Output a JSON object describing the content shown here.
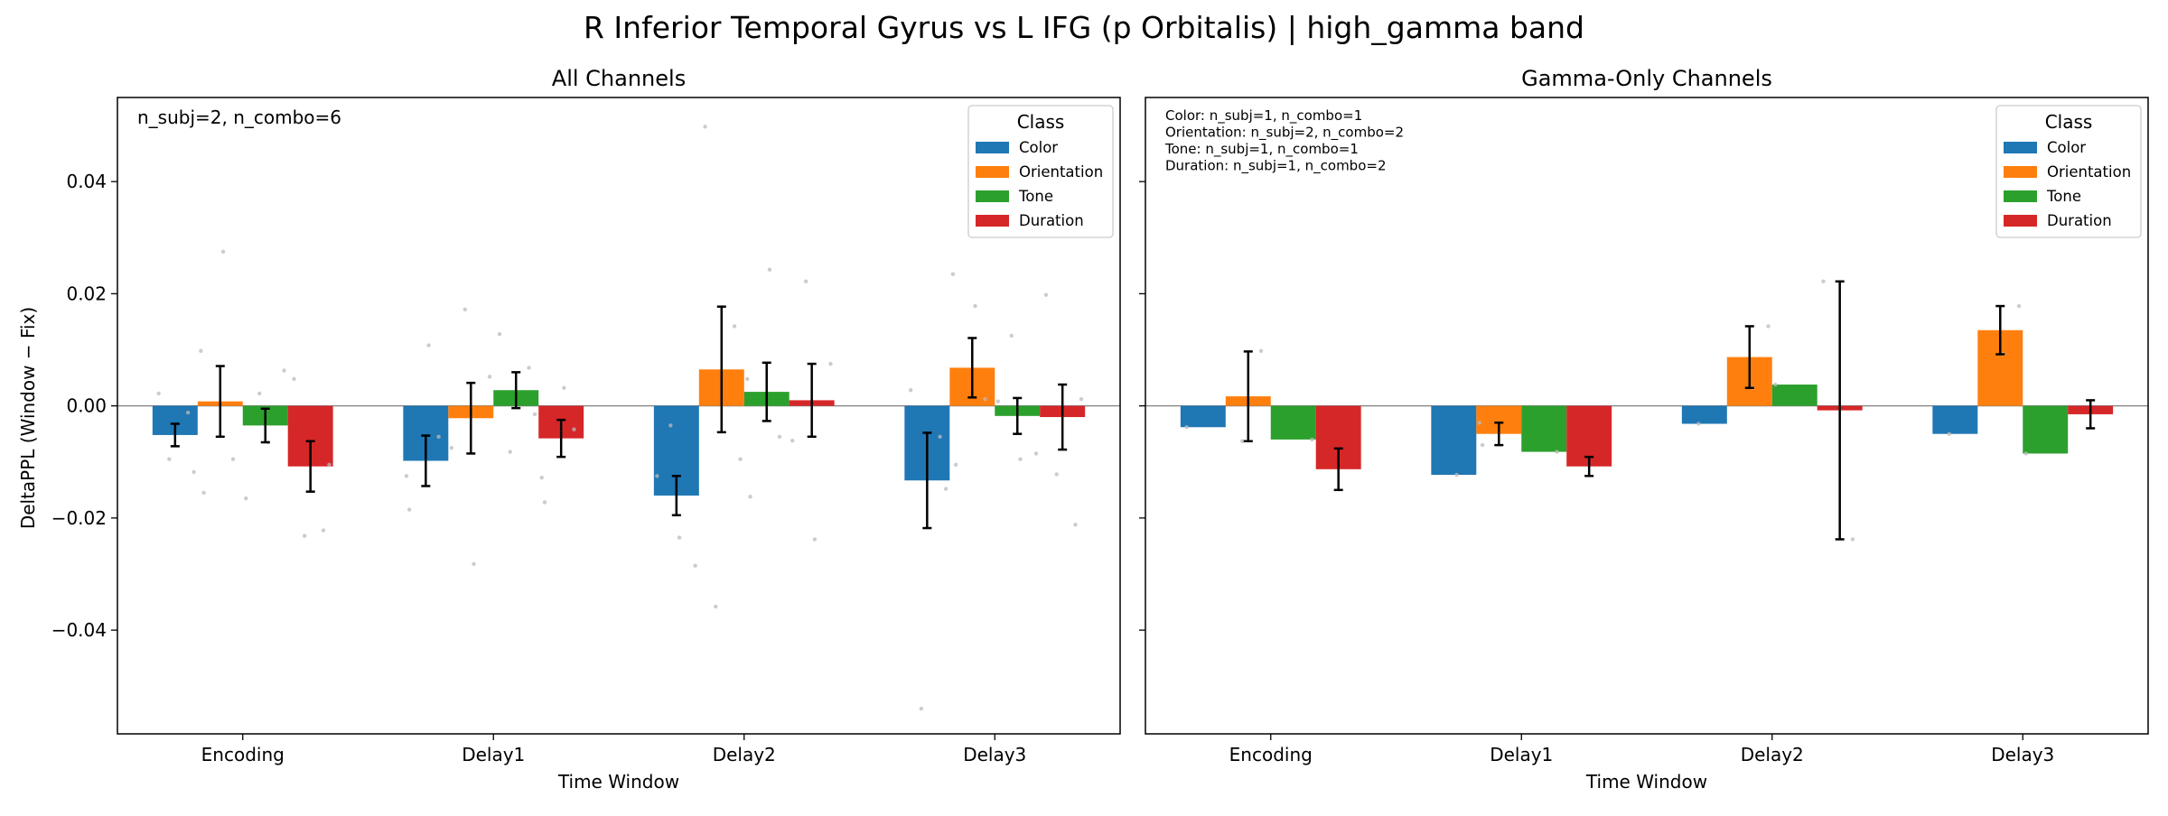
{
  "figure": {
    "suptitle": "R Inferior Temporal Gyrus vs L IFG (p Orbitalis)  |  high_gamma band",
    "ylabel": "DeltaPPL (Window − Fix)",
    "ylim": [
      -0.0585,
      0.055
    ],
    "yticks": [
      0.04,
      0.02,
      0.0,
      -0.02,
      -0.04
    ],
    "ytick_labels": [
      "0.04",
      "0.02",
      "0.00",
      "−0.02",
      "−0.04"
    ],
    "colors": {
      "Color": "#1f77b4",
      "Orientation": "#ff7f0e",
      "Tone": "#2ca02c",
      "Duration": "#d62728",
      "errorbar": "#000000",
      "points": "#bbbbbb",
      "zeroline": "#808080"
    }
  },
  "chart_data": [
    {
      "type": "bar",
      "title": "All Channels",
      "xlabel": "Time Window",
      "ylabel": "DeltaPPL (Window − Fix)",
      "categories": [
        "Encoding",
        "Delay1",
        "Delay2",
        "Delay3"
      ],
      "legend": {
        "title": "Class",
        "placement": "top-right"
      },
      "annotation": [
        "n_subj=2, n_combo=6"
      ],
      "series": [
        {
          "name": "Color",
          "values": [
            -0.0052,
            -0.0098,
            -0.016,
            -0.0133
          ],
          "err": [
            0.002,
            0.0045,
            0.0035,
            0.0085
          ]
        },
        {
          "name": "Orientation",
          "values": [
            0.0008,
            -0.0022,
            0.0065,
            0.0068
          ],
          "err": [
            0.0063,
            0.0063,
            0.0112,
            0.0053
          ]
        },
        {
          "name": "Tone",
          "values": [
            -0.0035,
            0.0028,
            0.0025,
            -0.0018
          ],
          "err": [
            0.003,
            0.0032,
            0.0052,
            0.0032
          ]
        },
        {
          "name": "Duration",
          "values": [
            -0.0108,
            -0.0058,
            0.001,
            -0.002
          ],
          "err": [
            0.0045,
            0.0033,
            0.0065,
            0.0058
          ]
        }
      ],
      "points": [
        [
          0,
          0,
          0.0022
        ],
        [
          0,
          0,
          -0.0012
        ],
        [
          0,
          0,
          -0.0095
        ],
        [
          0,
          0,
          -0.0118
        ],
        [
          0,
          1,
          0.0275
        ],
        [
          0,
          1,
          0.0098
        ],
        [
          0,
          1,
          -0.0155
        ],
        [
          0,
          1,
          -0.0095
        ],
        [
          0,
          2,
          0.0022
        ],
        [
          0,
          2,
          0.0063
        ],
        [
          0,
          2,
          -0.0065
        ],
        [
          0,
          2,
          -0.0165
        ],
        [
          0,
          3,
          0.0048
        ],
        [
          0,
          3,
          -0.0222
        ],
        [
          0,
          3,
          -0.0232
        ],
        [
          0,
          3,
          -0.0105
        ],
        [
          1,
          0,
          0.0108
        ],
        [
          1,
          0,
          -0.0125
        ],
        [
          1,
          0,
          -0.0185
        ],
        [
          1,
          0,
          -0.0055
        ],
        [
          1,
          1,
          0.0172
        ],
        [
          1,
          1,
          0.0052
        ],
        [
          1,
          1,
          -0.0282
        ],
        [
          1,
          1,
          -0.0075
        ],
        [
          1,
          2,
          0.0128
        ],
        [
          1,
          2,
          0.0068
        ],
        [
          1,
          2,
          -0.0082
        ],
        [
          1,
          2,
          -0.0015
        ],
        [
          1,
          3,
          0.0032
        ],
        [
          1,
          3,
          -0.0128
        ],
        [
          1,
          3,
          -0.0172
        ],
        [
          1,
          3,
          -0.0042
        ],
        [
          2,
          0,
          -0.0035
        ],
        [
          2,
          0,
          -0.0285
        ],
        [
          2,
          0,
          -0.0235
        ],
        [
          2,
          0,
          -0.0125
        ],
        [
          2,
          1,
          0.0498
        ],
        [
          2,
          1,
          0.0142
        ],
        [
          2,
          1,
          -0.0358
        ],
        [
          2,
          1,
          -0.0095
        ],
        [
          2,
          2,
          0.0243
        ],
        [
          2,
          2,
          0.0048
        ],
        [
          2,
          2,
          -0.0162
        ],
        [
          2,
          2,
          -0.0055
        ],
        [
          2,
          3,
          0.0222
        ],
        [
          2,
          3,
          0.0075
        ],
        [
          2,
          3,
          -0.0238
        ],
        [
          2,
          3,
          -0.0062
        ],
        [
          3,
          0,
          0.0028
        ],
        [
          3,
          0,
          -0.0055
        ],
        [
          3,
          0,
          -0.054
        ],
        [
          3,
          0,
          -0.0148
        ],
        [
          3,
          1,
          0.0178
        ],
        [
          3,
          1,
          0.0235
        ],
        [
          3,
          1,
          -0.0105
        ],
        [
          3,
          1,
          0.0012
        ],
        [
          3,
          2,
          0.0125
        ],
        [
          3,
          2,
          -0.0085
        ],
        [
          3,
          2,
          -0.0095
        ],
        [
          3,
          2,
          0.0008
        ],
        [
          3,
          3,
          0.0198
        ],
        [
          3,
          3,
          -0.0212
        ],
        [
          3,
          3,
          -0.0122
        ],
        [
          3,
          3,
          0.0012
        ]
      ]
    },
    {
      "type": "bar",
      "title": "Gamma-Only Channels",
      "xlabel": "Time Window",
      "categories": [
        "Encoding",
        "Delay1",
        "Delay2",
        "Delay3"
      ],
      "legend": {
        "title": "Class",
        "placement": "top-right"
      },
      "annotation": [
        "Color: n_subj=1, n_combo=1",
        "Orientation: n_subj=2, n_combo=2",
        "Tone: n_subj=1, n_combo=1",
        "Duration: n_subj=1, n_combo=2"
      ],
      "series": [
        {
          "name": "Color",
          "values": [
            -0.0038,
            -0.0123,
            -0.0032,
            -0.005
          ],
          "err": [
            null,
            null,
            null,
            null
          ]
        },
        {
          "name": "Orientation",
          "values": [
            0.0017,
            -0.005,
            0.0087,
            0.0135
          ],
          "err": [
            0.008,
            0.002,
            0.0055,
            0.0043
          ]
        },
        {
          "name": "Tone",
          "values": [
            -0.006,
            -0.0082,
            0.0038,
            -0.0085
          ],
          "err": [
            null,
            null,
            null,
            null
          ]
        },
        {
          "name": "Duration",
          "values": [
            -0.0113,
            -0.0108,
            -0.0008,
            -0.0015
          ],
          "err": [
            0.0037,
            0.0017,
            0.023,
            0.0025
          ]
        }
      ],
      "points": [
        [
          0,
          0,
          -0.0038
        ],
        [
          0,
          1,
          0.0098
        ],
        [
          0,
          1,
          -0.0063
        ],
        [
          0,
          2,
          -0.006
        ],
        [
          1,
          0,
          -0.0123
        ],
        [
          1,
          1,
          -0.003
        ],
        [
          1,
          1,
          -0.007
        ],
        [
          1,
          2,
          -0.0082
        ],
        [
          2,
          0,
          -0.0032
        ],
        [
          2,
          1,
          0.0142
        ],
        [
          2,
          1,
          0.0032
        ],
        [
          2,
          2,
          0.0038
        ],
        [
          2,
          3,
          0.0222
        ],
        [
          2,
          3,
          -0.0238
        ],
        [
          3,
          0,
          -0.005
        ],
        [
          3,
          1,
          0.0178
        ],
        [
          3,
          1,
          0.0092
        ],
        [
          3,
          2,
          -0.0085
        ]
      ]
    }
  ]
}
